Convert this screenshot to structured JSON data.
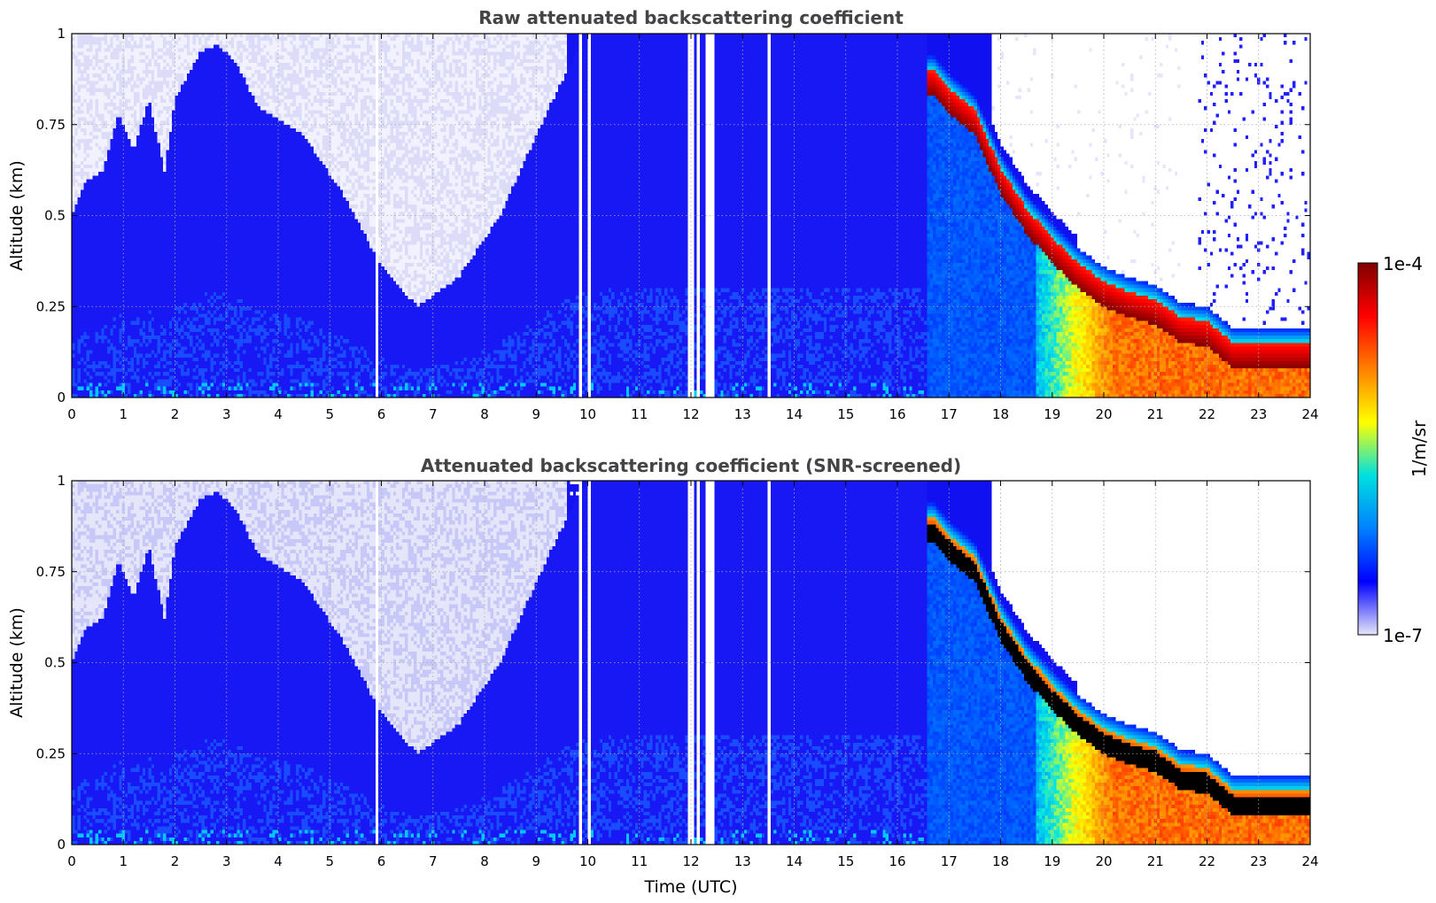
{
  "chart_data": [
    {
      "type": "heatmap",
      "title": "Raw attenuated backscattering coefficient",
      "xlabel": "",
      "ylabel": "Altitude (km)",
      "xlim": [
        0,
        24
      ],
      "ylim": [
        0,
        1
      ],
      "xticks": [
        0,
        1,
        2,
        3,
        4,
        5,
        6,
        7,
        8,
        9,
        10,
        11,
        12,
        13,
        14,
        15,
        16,
        17,
        18,
        19,
        20,
        21,
        22,
        23,
        24
      ],
      "xtick_labels": [
        "0",
        "1",
        "2",
        "3",
        "4",
        "5",
        "6",
        "7",
        "8",
        "9",
        "10",
        "11",
        "12",
        "13",
        "14",
        "15",
        "16",
        "17",
        "18",
        "19",
        "20",
        "21",
        "22",
        "23",
        "24"
      ],
      "yticks": [
        0,
        0.25,
        0.5,
        0.75,
        1
      ],
      "ytick_labels": [
        "0",
        "0.25",
        "0.5",
        "0.75",
        "1"
      ],
      "grid": true,
      "cloud_layer_base_km": {
        "time_utc": [
          16.7,
          17.0,
          17.5,
          18.0,
          18.5,
          19.0,
          19.5,
          20.0,
          20.5,
          21.0,
          21.5,
          22.0,
          22.5,
          23.0,
          24.0
        ],
        "altitude_km": [
          0.83,
          0.78,
          0.72,
          0.56,
          0.45,
          0.37,
          0.3,
          0.25,
          0.22,
          0.2,
          0.15,
          0.14,
          0.08,
          0.08,
          0.08
        ]
      },
      "no_signal_columns_utc": [
        5.9,
        9.85,
        10.05,
        12.0,
        12.15,
        12.3,
        12.4,
        13.5
      ]
    },
    {
      "type": "heatmap",
      "title": "Attenuated backscattering coefficient (SNR-screened)",
      "xlabel": "Time (UTC)",
      "ylabel": "Altitude (km)",
      "xlim": [
        0,
        24
      ],
      "ylim": [
        0,
        1
      ],
      "xticks": [
        0,
        1,
        2,
        3,
        4,
        5,
        6,
        7,
        8,
        9,
        10,
        11,
        12,
        13,
        14,
        15,
        16,
        17,
        18,
        19,
        20,
        21,
        22,
        23,
        24
      ],
      "xtick_labels": [
        "0",
        "1",
        "2",
        "3",
        "4",
        "5",
        "6",
        "7",
        "8",
        "9",
        "10",
        "11",
        "12",
        "13",
        "14",
        "15",
        "16",
        "17",
        "18",
        "19",
        "20",
        "21",
        "22",
        "23",
        "24"
      ],
      "yticks": [
        0,
        0.25,
        0.5,
        0.75,
        1
      ],
      "ytick_labels": [
        "0",
        "0.25",
        "0.5",
        "0.75",
        "1"
      ],
      "grid": true,
      "saturated_color": "#000000"
    }
  ],
  "colorbar": {
    "label": "1/m/sr",
    "min_label": "1e-7",
    "max_label": "1e-4",
    "scale": "log",
    "colors": [
      "#e6e6fa",
      "#0000ff",
      "#0080ff",
      "#00e0e0",
      "#ffff00",
      "#ff8000",
      "#ff0000",
      "#800000"
    ]
  },
  "colors": {
    "background_blue": "#1010f0",
    "sparse": "#dcdcf8",
    "layer": "#8b0000"
  }
}
